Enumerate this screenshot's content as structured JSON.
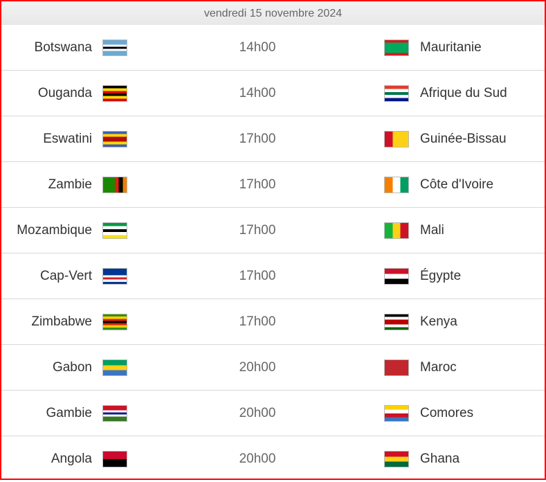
{
  "header": {
    "date": "vendredi 15 novembre 2024"
  },
  "matches": [
    {
      "home": "Botswana",
      "home_flag": {
        "dir": "h",
        "colors": [
          "#6da9d2",
          "#6da9d2",
          "#fff",
          "#000",
          "#fff",
          "#6da9d2",
          "#6da9d2"
        ]
      },
      "time": "14h00",
      "away": "Mauritanie",
      "away_flag": {
        "dir": "h",
        "colors": [
          "#d01c1f",
          "#00a95c",
          "#00a95c",
          "#00a95c",
          "#00a95c",
          "#d01c1f"
        ]
      }
    },
    {
      "home": "Ouganda",
      "home_flag": {
        "dir": "h",
        "colors": [
          "#000",
          "#fcdc04",
          "#d90000",
          "#000",
          "#fcdc04",
          "#d90000"
        ]
      },
      "time": "14h00",
      "away": "Afrique du Sud",
      "away_flag": {
        "dir": "h",
        "colors": [
          "#e03c31",
          "#fff",
          "#007749",
          "#fff",
          "#001489"
        ]
      }
    },
    {
      "home": "Eswatini",
      "home_flag": {
        "dir": "h",
        "colors": [
          "#3e5eb9",
          "#ffd900",
          "#b10c0c",
          "#b10c0c",
          "#ffd900",
          "#3e5eb9"
        ]
      },
      "time": "17h00",
      "away": "Guinée-Bissau",
      "away_flag": {
        "dir": "v",
        "colors": [
          "#ce1126",
          "#fcd116",
          "#fcd116"
        ]
      }
    },
    {
      "home": "Zambie",
      "home_flag": {
        "dir": "v",
        "colors": [
          "#198a00",
          "#198a00",
          "#198a00",
          "#de2010",
          "#000",
          "#ef7d00"
        ]
      },
      "time": "17h00",
      "away": "Côte d'Ivoire",
      "away_flag": {
        "dir": "v",
        "colors": [
          "#f77f00",
          "#fff",
          "#009e60"
        ]
      }
    },
    {
      "home": "Mozambique",
      "home_flag": {
        "dir": "h",
        "colors": [
          "#009a44",
          "#fff",
          "#000",
          "#fff",
          "#fce100"
        ]
      },
      "time": "17h00",
      "away": "Mali",
      "away_flag": {
        "dir": "v",
        "colors": [
          "#14b53a",
          "#fcd116",
          "#ce1126"
        ]
      }
    },
    {
      "home": "Cap-Vert",
      "home_flag": {
        "dir": "h",
        "colors": [
          "#003893",
          "#003893",
          "#003893",
          "#fff",
          "#cf2027",
          "#fff",
          "#003893"
        ]
      },
      "time": "17h00",
      "away": "Égypte",
      "away_flag": {
        "dir": "h",
        "colors": [
          "#ce1126",
          "#fff",
          "#000"
        ]
      }
    },
    {
      "home": "Zimbabwe",
      "home_flag": {
        "dir": "h",
        "colors": [
          "#319208",
          "#ffd200",
          "#de2010",
          "#000",
          "#de2010",
          "#ffd200",
          "#319208"
        ]
      },
      "time": "17h00",
      "away": "Kenya",
      "away_flag": {
        "dir": "h",
        "colors": [
          "#000",
          "#fff",
          "#bb0000",
          "#bb0000",
          "#fff",
          "#006600"
        ]
      }
    },
    {
      "home": "Gabon",
      "home_flag": {
        "dir": "h",
        "colors": [
          "#009e60",
          "#fcd116",
          "#3a75c4"
        ]
      },
      "time": "20h00",
      "away": "Maroc",
      "away_flag": {
        "dir": "h",
        "colors": [
          "#c1272d"
        ]
      }
    },
    {
      "home": "Gambie",
      "home_flag": {
        "dir": "h",
        "colors": [
          "#ce1126",
          "#ce1126",
          "#fff",
          "#0c1c8c",
          "#fff",
          "#3a7728",
          "#3a7728"
        ]
      },
      "time": "20h00",
      "away": "Comores",
      "away_flag": {
        "dir": "h",
        "colors": [
          "#ffd100",
          "#fff",
          "#ce1126",
          "#3a75c4"
        ]
      }
    },
    {
      "home": "Angola",
      "home_flag": {
        "dir": "h",
        "colors": [
          "#cc092f",
          "#000"
        ]
      },
      "time": "20h00",
      "away": "Ghana",
      "away_flag": {
        "dir": "h",
        "colors": [
          "#ce1126",
          "#fcd116",
          "#006b3f"
        ]
      }
    }
  ]
}
